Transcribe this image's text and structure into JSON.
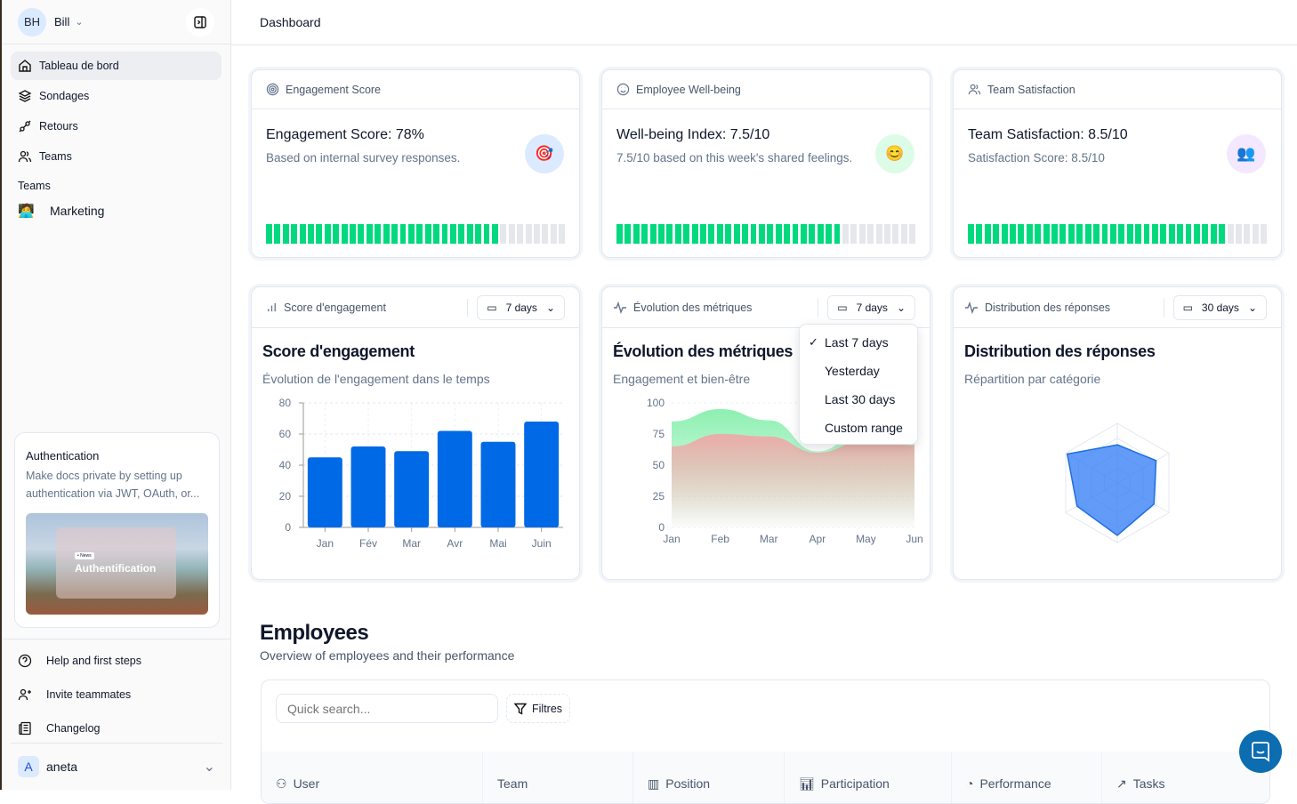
{
  "sidebar": {
    "user": {
      "initials": "BH",
      "name": "Bill"
    },
    "nav": [
      {
        "label": "Tableau de bord",
        "icon": "home-icon",
        "active": true
      },
      {
        "label": "Sondages",
        "icon": "layers-icon"
      },
      {
        "label": "Retours",
        "icon": "plug-icon"
      },
      {
        "label": "Teams",
        "icon": "users-icon"
      }
    ],
    "teams_label": "Teams",
    "teams": [
      {
        "emoji": "🧑‍💻",
        "label": "Marketing"
      }
    ],
    "promo": {
      "title": "Authentication",
      "text": "Make docs private by setting up authentication via JWT, OAuth, or...",
      "image_badge": "• News",
      "image_title": "Authentification"
    },
    "bottom": [
      {
        "label": "Help and first steps",
        "icon": "help-circle-icon"
      },
      {
        "label": "Invite teammates",
        "icon": "user-plus-icon"
      },
      {
        "label": "Changelog",
        "icon": "newspaper-icon"
      }
    ],
    "account": {
      "initial": "A",
      "name": "aneta"
    }
  },
  "header": {
    "title": "Dashboard"
  },
  "kpis": [
    {
      "header": "Engagement Score",
      "title": "Engagement Score: 78%",
      "subtitle": "Based on internal survey responses.",
      "emoji": "🎯",
      "icon_bg": "#dbeafe",
      "progress": 78
    },
    {
      "header": "Employee Well-being",
      "title": "Well-being Index: 7.5/10",
      "subtitle": "7.5/10 based on this week's shared feelings.",
      "emoji": "😊",
      "icon_bg": "#dcfce7",
      "progress": 75
    },
    {
      "header": "Team Satisfaction",
      "title": "Team Satisfaction: 8.5/10",
      "subtitle": "Satisfaction Score: 8.5/10",
      "emoji": "👥",
      "icon_bg": "#f3e8ff",
      "progress": 85
    }
  ],
  "charts_ui": [
    {
      "header": "Score d'engagement",
      "range": "7 days",
      "title": "Score d'engagement",
      "subtitle": "Évolution de l'engagement dans le temps"
    },
    {
      "header": "Évolution des métriques",
      "range": "7 days",
      "title": "Évolution des métriques",
      "subtitle": "Engagement et bien-être"
    },
    {
      "header": "Distribution des réponses",
      "range": "30 days",
      "title": "Distribution des réponses",
      "subtitle": "Répartition par catégorie"
    }
  ],
  "dropdown": {
    "options": [
      "Last 7 days",
      "Yesterday",
      "Last 30 days",
      "Custom range"
    ],
    "selected": "Last 7 days"
  },
  "chart_data": [
    {
      "type": "bar",
      "categories": [
        "Jan",
        "Fév",
        "Mar",
        "Avr",
        "Mai",
        "Juin"
      ],
      "values": [
        45,
        52,
        49,
        62,
        55,
        68
      ],
      "ylim": [
        0,
        80
      ],
      "yticks": [
        0,
        20,
        40,
        60,
        80
      ],
      "grid": true,
      "color": "#0069e6"
    },
    {
      "type": "area",
      "categories": [
        "Jan",
        "Feb",
        "Mar",
        "Apr",
        "May",
        "Jun"
      ],
      "ylim": [
        0,
        100
      ],
      "yticks": [
        0,
        25,
        50,
        75,
        100
      ],
      "grid": true,
      "series": [
        {
          "values": [
            85,
            95,
            86,
            61,
            80,
            76
          ],
          "color": "#86efac"
        },
        {
          "values": [
            65,
            75,
            73,
            60,
            70,
            66
          ],
          "color": "#f0a8a8"
        }
      ]
    },
    {
      "type": "radar",
      "axes": 6,
      "rmax": 100,
      "values": [
        64,
        75,
        71,
        88,
        78,
        97
      ],
      "color": "#3b82f6"
    }
  ],
  "employees": {
    "title": "Employees",
    "subtitle": "Overview of employees and their performance",
    "search_placeholder": "Quick search...",
    "filter_label": "Filtres",
    "columns": [
      {
        "label": "User",
        "icon": "users-icon"
      },
      {
        "label": "Team",
        "icon": ""
      },
      {
        "label": "Position",
        "icon": "briefcase-icon"
      },
      {
        "label": "Participation",
        "icon": "bar-chart-icon"
      },
      {
        "label": "Performance",
        "icon": "pie-chart-icon"
      },
      {
        "label": "Tasks",
        "icon": "trending-up-icon"
      }
    ]
  }
}
